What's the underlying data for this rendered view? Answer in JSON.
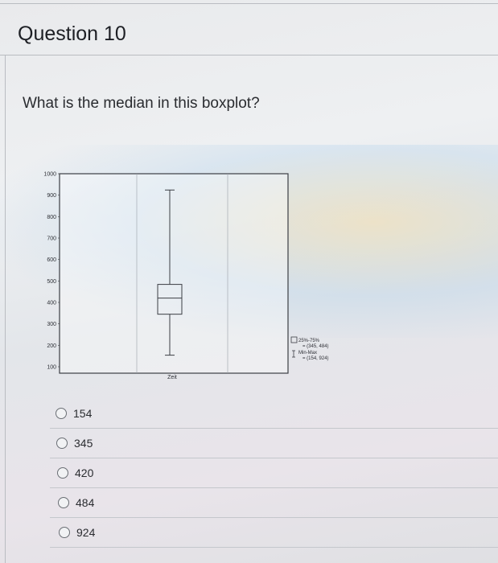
{
  "question": {
    "title": "Question 10",
    "prompt": "What is the median in this boxplot?"
  },
  "chart_data": {
    "type": "boxplot",
    "ylim": [
      0,
      1000
    ],
    "yticks": [
      "1000",
      "900",
      "800",
      "700",
      "600",
      "500",
      "400",
      "300",
      "200",
      "100"
    ],
    "category": "Zeit",
    "min": 154,
    "q1": 345,
    "median": 420,
    "q3": 484,
    "max": 924,
    "legend": [
      {
        "symbol": "box",
        "label": "25%-75%",
        "value": "= (345, 484)"
      },
      {
        "symbol": "whisker",
        "label": "Min-Max",
        "value": "= (154, 924)"
      }
    ]
  },
  "options": [
    {
      "label": "154"
    },
    {
      "label": "345"
    },
    {
      "label": "420"
    },
    {
      "label": "484"
    },
    {
      "label": "924"
    }
  ]
}
